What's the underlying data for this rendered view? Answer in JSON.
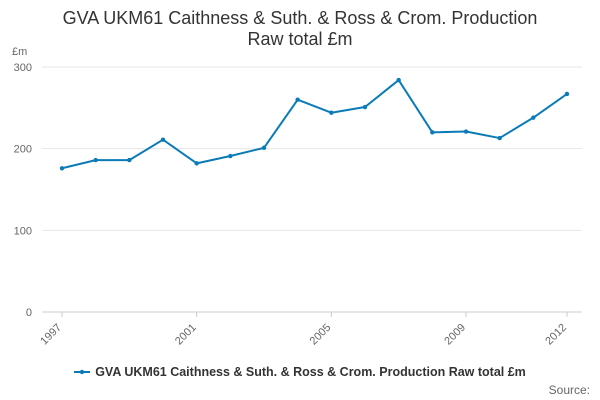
{
  "colors": {
    "series": "#0b7bb8",
    "grid": "#e6e6e6",
    "axis": "#cccccc"
  },
  "chart_data": {
    "type": "line",
    "title_lines": [
      "GVA UKM61 Caithness & Suth. & Ross & Crom. Production",
      "Raw total £m"
    ],
    "ylabel": "£m",
    "ylim": [
      0,
      300
    ],
    "yticks": [
      0,
      100,
      200,
      300
    ],
    "xticks": [
      1997,
      2001,
      2005,
      2009,
      2012
    ],
    "x": [
      1997,
      1998,
      1999,
      2000,
      2001,
      2002,
      2003,
      2004,
      2005,
      2006,
      2007,
      2008,
      2009,
      2010,
      2011,
      2012
    ],
    "series": [
      {
        "name": "GVA UKM61 Caithness & Suth. & Ross & Crom. Production Raw total £m",
        "values": [
          176,
          186,
          186,
          211,
          182,
          191,
          201,
          260,
          244,
          251,
          284,
          220,
          221,
          213,
          238,
          267
        ]
      }
    ],
    "grid": true,
    "legend": "bottom-center"
  },
  "source_label": "Source:"
}
